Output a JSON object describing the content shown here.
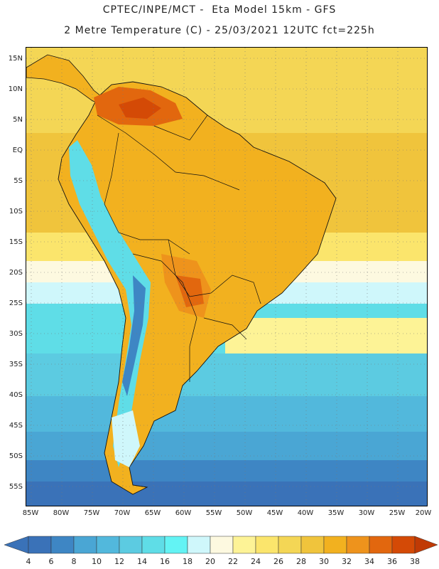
{
  "header": {
    "line1": "CPTEC/INPE/MCT -  Eta Model 15km - GFS",
    "line2": "2 Metre Temperature (C) - 25/03/2021 12UTC fct=225h"
  },
  "map": {
    "region": "South America",
    "latitude_labels": [
      "15N",
      "10N",
      "5N",
      "EQ",
      "5S",
      "10S",
      "15S",
      "20S",
      "25S",
      "30S",
      "35S",
      "40S",
      "45S",
      "50S",
      "55S"
    ],
    "longitude_labels": [
      "85W",
      "80W",
      "75W",
      "70W",
      "65W",
      "60W",
      "55W",
      "50W",
      "45W",
      "40W",
      "35W",
      "30W",
      "25W",
      "20W"
    ]
  },
  "colorbar": {
    "units": "C",
    "labels": [
      "4",
      "6",
      "8",
      "10",
      "12",
      "14",
      "16",
      "18",
      "20",
      "22",
      "24",
      "26",
      "28",
      "30",
      "32",
      "34",
      "36",
      "38"
    ],
    "colors": [
      "#3a72b8",
      "#3e86c4",
      "#4aa6d4",
      "#52b8dc",
      "#5ccbe1",
      "#5fdde7",
      "#63f3f4",
      "#cff7fb",
      "#fdf9e0",
      "#fdf396",
      "#fbe56c",
      "#f4d655",
      "#f0c43c",
      "#f2b11f",
      "#ee931c",
      "#e2670e",
      "#d44a06"
    ],
    "low_color": "#3a72b8",
    "high_color": "#c03a05"
  }
}
